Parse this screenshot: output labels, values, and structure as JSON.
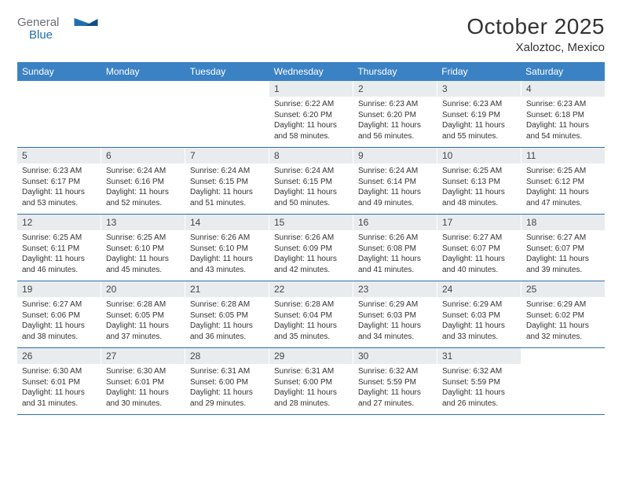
{
  "brand": {
    "part1": "General",
    "part2": "Blue"
  },
  "title": "October 2025",
  "location": "Xaloztoc, Mexico",
  "colors": {
    "header_bg": "#3b82c4",
    "header_text": "#ffffff",
    "row_border": "#2f6ea8",
    "daynum_bg": "#e9ecef",
    "text": "#333333",
    "logo_blue": "#1f6fb0"
  },
  "day_names": [
    "Sunday",
    "Monday",
    "Tuesday",
    "Wednesday",
    "Thursday",
    "Friday",
    "Saturday"
  ],
  "weeks": [
    [
      {
        "n": "",
        "sr": "",
        "ss": "",
        "dl": ""
      },
      {
        "n": "",
        "sr": "",
        "ss": "",
        "dl": ""
      },
      {
        "n": "",
        "sr": "",
        "ss": "",
        "dl": ""
      },
      {
        "n": "1",
        "sr": "6:22 AM",
        "ss": "6:20 PM",
        "dl": "11 hours and 58 minutes."
      },
      {
        "n": "2",
        "sr": "6:23 AM",
        "ss": "6:20 PM",
        "dl": "11 hours and 56 minutes."
      },
      {
        "n": "3",
        "sr": "6:23 AM",
        "ss": "6:19 PM",
        "dl": "11 hours and 55 minutes."
      },
      {
        "n": "4",
        "sr": "6:23 AM",
        "ss": "6:18 PM",
        "dl": "11 hours and 54 minutes."
      }
    ],
    [
      {
        "n": "5",
        "sr": "6:23 AM",
        "ss": "6:17 PM",
        "dl": "11 hours and 53 minutes."
      },
      {
        "n": "6",
        "sr": "6:24 AM",
        "ss": "6:16 PM",
        "dl": "11 hours and 52 minutes."
      },
      {
        "n": "7",
        "sr": "6:24 AM",
        "ss": "6:15 PM",
        "dl": "11 hours and 51 minutes."
      },
      {
        "n": "8",
        "sr": "6:24 AM",
        "ss": "6:15 PM",
        "dl": "11 hours and 50 minutes."
      },
      {
        "n": "9",
        "sr": "6:24 AM",
        "ss": "6:14 PM",
        "dl": "11 hours and 49 minutes."
      },
      {
        "n": "10",
        "sr": "6:25 AM",
        "ss": "6:13 PM",
        "dl": "11 hours and 48 minutes."
      },
      {
        "n": "11",
        "sr": "6:25 AM",
        "ss": "6:12 PM",
        "dl": "11 hours and 47 minutes."
      }
    ],
    [
      {
        "n": "12",
        "sr": "6:25 AM",
        "ss": "6:11 PM",
        "dl": "11 hours and 46 minutes."
      },
      {
        "n": "13",
        "sr": "6:25 AM",
        "ss": "6:10 PM",
        "dl": "11 hours and 45 minutes."
      },
      {
        "n": "14",
        "sr": "6:26 AM",
        "ss": "6:10 PM",
        "dl": "11 hours and 43 minutes."
      },
      {
        "n": "15",
        "sr": "6:26 AM",
        "ss": "6:09 PM",
        "dl": "11 hours and 42 minutes."
      },
      {
        "n": "16",
        "sr": "6:26 AM",
        "ss": "6:08 PM",
        "dl": "11 hours and 41 minutes."
      },
      {
        "n": "17",
        "sr": "6:27 AM",
        "ss": "6:07 PM",
        "dl": "11 hours and 40 minutes."
      },
      {
        "n": "18",
        "sr": "6:27 AM",
        "ss": "6:07 PM",
        "dl": "11 hours and 39 minutes."
      }
    ],
    [
      {
        "n": "19",
        "sr": "6:27 AM",
        "ss": "6:06 PM",
        "dl": "11 hours and 38 minutes."
      },
      {
        "n": "20",
        "sr": "6:28 AM",
        "ss": "6:05 PM",
        "dl": "11 hours and 37 minutes."
      },
      {
        "n": "21",
        "sr": "6:28 AM",
        "ss": "6:05 PM",
        "dl": "11 hours and 36 minutes."
      },
      {
        "n": "22",
        "sr": "6:28 AM",
        "ss": "6:04 PM",
        "dl": "11 hours and 35 minutes."
      },
      {
        "n": "23",
        "sr": "6:29 AM",
        "ss": "6:03 PM",
        "dl": "11 hours and 34 minutes."
      },
      {
        "n": "24",
        "sr": "6:29 AM",
        "ss": "6:03 PM",
        "dl": "11 hours and 33 minutes."
      },
      {
        "n": "25",
        "sr": "6:29 AM",
        "ss": "6:02 PM",
        "dl": "11 hours and 32 minutes."
      }
    ],
    [
      {
        "n": "26",
        "sr": "6:30 AM",
        "ss": "6:01 PM",
        "dl": "11 hours and 31 minutes."
      },
      {
        "n": "27",
        "sr": "6:30 AM",
        "ss": "6:01 PM",
        "dl": "11 hours and 30 minutes."
      },
      {
        "n": "28",
        "sr": "6:31 AM",
        "ss": "6:00 PM",
        "dl": "11 hours and 29 minutes."
      },
      {
        "n": "29",
        "sr": "6:31 AM",
        "ss": "6:00 PM",
        "dl": "11 hours and 28 minutes."
      },
      {
        "n": "30",
        "sr": "6:32 AM",
        "ss": "5:59 PM",
        "dl": "11 hours and 27 minutes."
      },
      {
        "n": "31",
        "sr": "6:32 AM",
        "ss": "5:59 PM",
        "dl": "11 hours and 26 minutes."
      },
      {
        "n": "",
        "sr": "",
        "ss": "",
        "dl": ""
      }
    ]
  ],
  "labels": {
    "sunrise": "Sunrise:",
    "sunset": "Sunset:",
    "daylight": "Daylight:"
  }
}
